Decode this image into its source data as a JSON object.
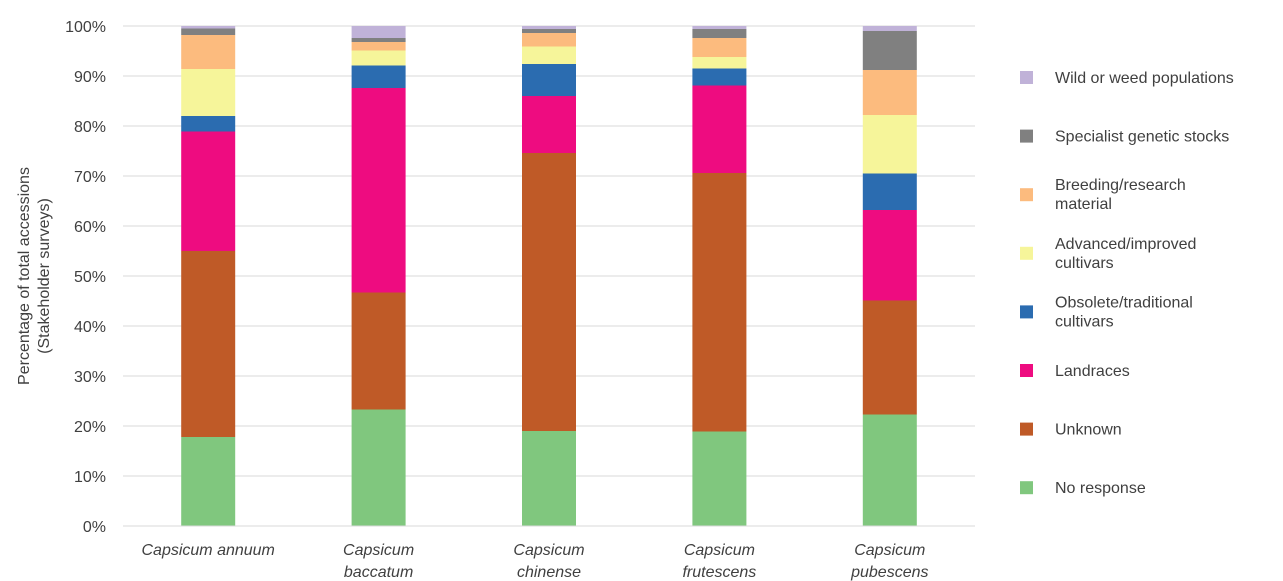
{
  "chart_data": {
    "type": "bar",
    "stacked": true,
    "title": "",
    "xlabel": "",
    "ylabel": [
      "Percentage of total accessions",
      "(Stakeholder surveys)"
    ],
    "ylim": [
      0,
      100
    ],
    "yticks": [
      "0%",
      "10%",
      "20%",
      "30%",
      "40%",
      "50%",
      "60%",
      "70%",
      "80%",
      "90%",
      "100%"
    ],
    "grid": true,
    "legend_position": "right",
    "categories": [
      [
        "Capsicum annuum"
      ],
      [
        "Capsicum",
        "baccatum"
      ],
      [
        "Capsicum",
        "chinense"
      ],
      [
        "Capsicum",
        "frutescens"
      ],
      [
        "Capsicum",
        "pubescens"
      ]
    ],
    "series": [
      {
        "name": "No response",
        "label_lines": [
          "No response"
        ],
        "color": "#80c77e",
        "values": [
          17.8,
          23.3,
          19.0,
          18.9,
          22.3
        ]
      },
      {
        "name": "Unknown",
        "label_lines": [
          "Unknown"
        ],
        "color": "#bf5a27",
        "values": [
          37.2,
          23.4,
          55.6,
          51.7,
          22.8
        ]
      },
      {
        "name": "Landraces",
        "label_lines": [
          "Landraces"
        ],
        "color": "#ee0c80",
        "values": [
          23.9,
          40.9,
          11.4,
          17.5,
          18.1
        ]
      },
      {
        "name": "Obsolete/traditional cultivars",
        "label_lines": [
          "Obsolete/traditional",
          "cultivars"
        ],
        "color": "#2b6cb0",
        "values": [
          3.1,
          4.5,
          6.4,
          3.4,
          7.3
        ]
      },
      {
        "name": "Advanced/improved cultivars",
        "label_lines": [
          "Advanced/improved",
          "cultivars"
        ],
        "color": "#f6f59a",
        "values": [
          9.4,
          3.0,
          3.5,
          2.3,
          11.7
        ]
      },
      {
        "name": "Breeding/research material",
        "label_lines": [
          "Breeding/research",
          "material"
        ],
        "color": "#fcbb7e",
        "values": [
          6.8,
          1.7,
          2.7,
          3.8,
          9.0
        ]
      },
      {
        "name": "Specialist genetic stocks",
        "label_lines": [
          "Specialist genetic stocks"
        ],
        "color": "#808080",
        "values": [
          1.3,
          0.8,
          0.8,
          1.8,
          7.8
        ]
      },
      {
        "name": "Wild or weed populations",
        "label_lines": [
          "Wild or weed populations"
        ],
        "color": "#c0b2d8",
        "values": [
          0.5,
          2.4,
          0.6,
          0.6,
          1.0
        ]
      }
    ]
  }
}
